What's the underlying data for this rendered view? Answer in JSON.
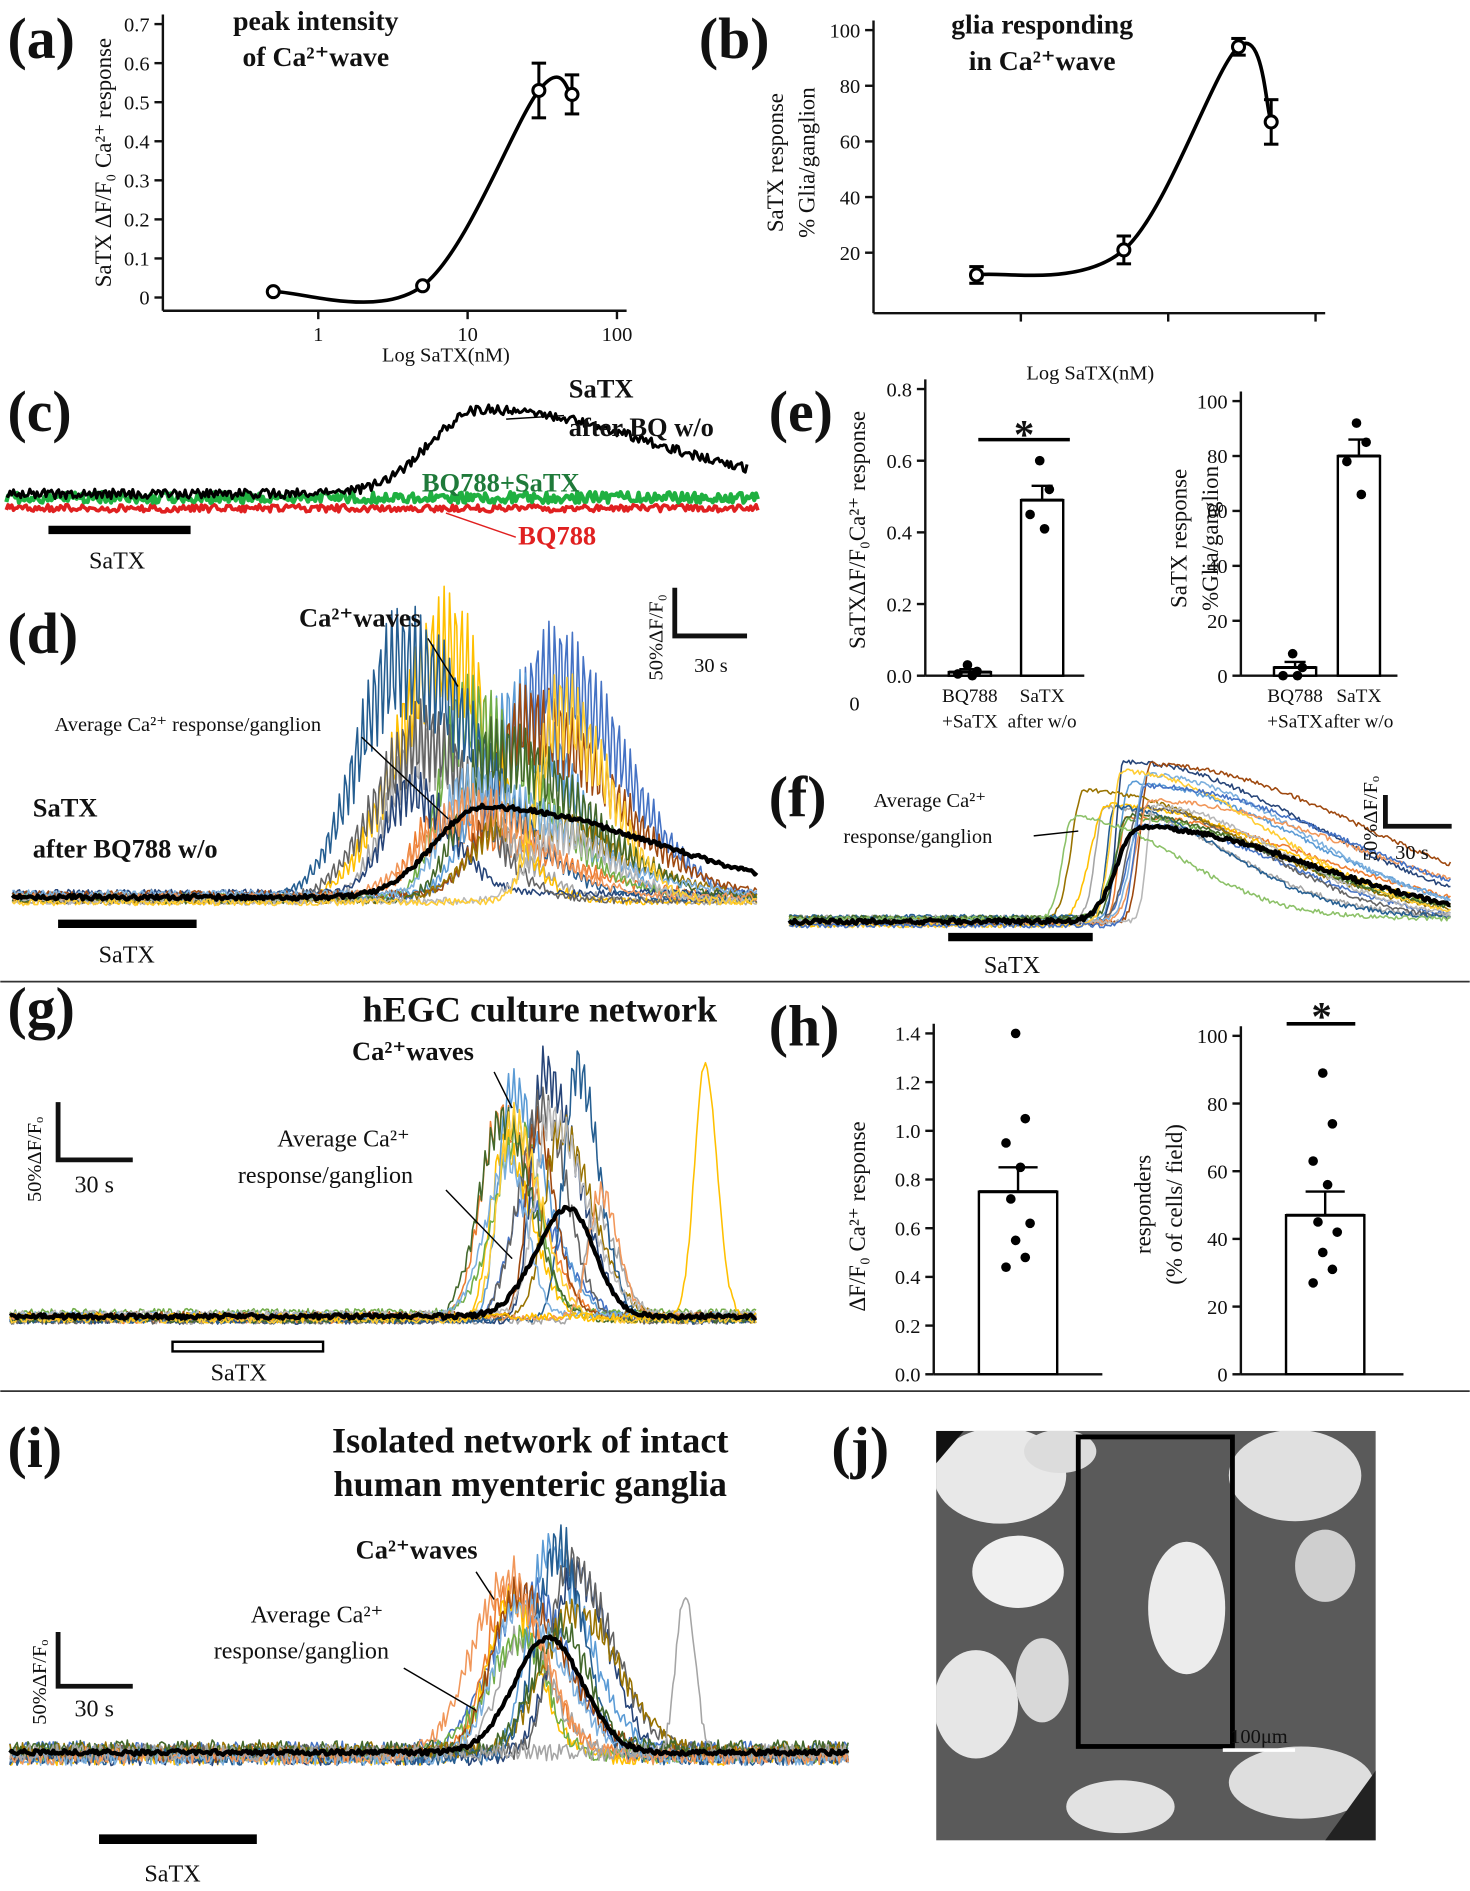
{
  "panel_labels": [
    "(a)",
    "(b)",
    "(c)",
    "(d)",
    "(e)",
    "(f)",
    "(g)",
    "(h)",
    "(i)",
    "(j)"
  ],
  "chart_data": [
    {
      "type": "line",
      "title": [
        "peak intensity",
        "of Ca²⁺wave"
      ],
      "y_label": "SaTX ΔF/F₀ Ca²⁺ response",
      "x_label": "Log SaTX(nM)",
      "x": [
        0.5,
        5,
        30,
        50
      ],
      "values": [
        0.015,
        0.03,
        0.53,
        0.52
      ],
      "errors": [
        0,
        0,
        0.07,
        0.05
      ],
      "xlim": [
        0.1,
        100
      ],
      "xticks": [
        1,
        10,
        100
      ],
      "x_log": true,
      "ylim": [
        0,
        0.7
      ],
      "yticks": [
        0,
        0.1,
        0.2,
        0.3,
        0.4,
        0.5,
        0.6,
        0.7
      ],
      "color": "#000000"
    },
    {
      "type": "line",
      "title": [
        "glia responding",
        "in Ca²⁺wave"
      ],
      "y_label": [
        "SaTX response",
        "% Glia/ganglion"
      ],
      "x_label": "Log SaTX(nM)",
      "x": [
        0.5,
        5,
        30,
        50
      ],
      "values": [
        12,
        21,
        94,
        67
      ],
      "errors": [
        3,
        5,
        3,
        8
      ],
      "xlim": [
        0.1,
        100
      ],
      "xticks": [
        1,
        10,
        100
      ],
      "x_log": true,
      "xtick_labels": false,
      "ylim": [
        0,
        100
      ],
      "yticks": [
        20,
        40,
        60,
        80,
        100
      ],
      "color": "#000000"
    },
    {
      "type": "bar",
      "y_label": "SaTXΔF/F₀Ca²⁺ response",
      "categories": [
        [
          "BQ788",
          "+SaTX"
        ],
        [
          "SaTX",
          "after w/o"
        ]
      ],
      "values": [
        0.01,
        0.49
      ],
      "errors": [
        0.008,
        0.04
      ],
      "points": [
        [
          0.03,
          0.012,
          0.005,
          0.0
        ],
        [
          0.6,
          0.52,
          0.45,
          0.41
        ]
      ],
      "ylim": [
        0,
        0.8
      ],
      "yticks": [
        {
          "value": 0,
          "label": "0.0"
        },
        0.2,
        0.4,
        0.6,
        0.8
      ],
      "annotation": "*",
      "origin_label": "0",
      "color": "#ffffff"
    },
    {
      "type": "bar",
      "y_label": [
        "SaTX response",
        "%Glia/ganglion"
      ],
      "categories": [
        [
          "BQ788",
          "+SaTX"
        ],
        [
          "SaTX",
          "after w/o"
        ]
      ],
      "values": [
        3,
        80
      ],
      "errors": [
        2,
        6
      ],
      "points": [
        [
          8,
          3,
          0,
          0
        ],
        [
          92,
          85,
          78,
          66
        ]
      ],
      "ylim": [
        0,
        100
      ],
      "yticks": [
        0,
        20,
        40,
        60,
        80,
        100
      ],
      "color": "#ffffff"
    },
    {
      "type": "bar",
      "y_label": "ΔF/F₀  Ca²⁺ response",
      "values": [
        0.75
      ],
      "errors": [
        0.1
      ],
      "points": [
        [
          1.4,
          1.05,
          0.95,
          0.85,
          0.72,
          0.62,
          0.55,
          0.48,
          0.44
        ]
      ],
      "ylim": [
        0,
        1.4
      ],
      "yticks": [
        {
          "value": 0,
          "label": "0.0"
        },
        0.2,
        0.4,
        0.6,
        0.8,
        {
          "value": 1,
          "label": "1.0"
        },
        1.2,
        1.4
      ],
      "color": "#ffffff"
    },
    {
      "type": "bar",
      "y_label": [
        "responders",
        "(% of cells/ field)"
      ],
      "values": [
        47
      ],
      "errors": [
        7
      ],
      "points": [
        [
          89,
          74,
          63,
          56,
          45,
          42,
          36,
          31,
          27
        ]
      ],
      "ylim": [
        0,
        100
      ],
      "yticks": [
        0,
        20,
        40,
        60,
        80,
        100
      ],
      "annotation": "*",
      "color": "#ffffff"
    }
  ],
  "traces": {
    "c": {
      "labels": [
        "SaTX",
        "after BQ w/o",
        "BQ788+SaTX",
        "BQ788"
      ],
      "stimulus": "SaTX"
    },
    "d": {
      "waves": "Ca²⁺waves",
      "average": "Average Ca²⁺ response/ganglion",
      "condition": [
        "SaTX",
        "after BQ788 w/o"
      ],
      "stimulus": "SaTX",
      "scale_y": "50%ΔF/F₀",
      "scale_x": "30 s"
    },
    "f": {
      "average": [
        "Average Ca²⁺",
        "response/ganglion"
      ],
      "stimulus": "SaTX",
      "scale_y": "50%ΔF/Fₒ",
      "scale_x": "30 s"
    },
    "g": {
      "title": "hEGC culture network",
      "waves": "Ca²⁺waves",
      "average": [
        "Average Ca²⁺",
        "response/ganglion"
      ],
      "stimulus": "SaTX",
      "scale_y": "50%ΔF/Fₒ",
      "scale_x": "30 s"
    },
    "i": {
      "title": [
        "Isolated network of intact",
        "human myenteric ganglia"
      ],
      "waves": "Ca²⁺waves",
      "average": [
        "Average Ca²⁺",
        "response/ganglion"
      ],
      "stimulus": "SaTX",
      "scale_y": "50%ΔF/Fₒ",
      "scale_x": "30 s"
    }
  },
  "image": {
    "scale_bar": "100μm"
  }
}
